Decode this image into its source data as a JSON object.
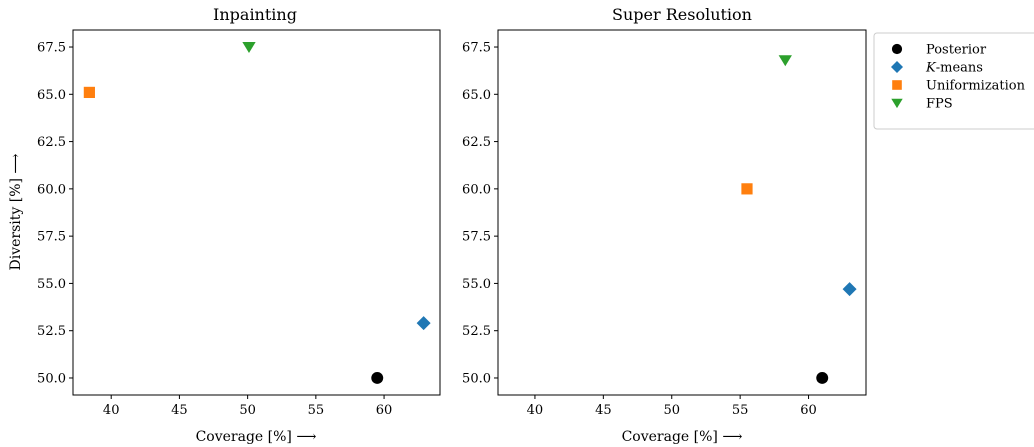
{
  "chart_data": [
    {
      "type": "scatter",
      "title": "Inpainting",
      "xlabel": "Coverage [%] ⟶",
      "ylabel": "Diversity [%] ⟶",
      "xlim": [
        37.2,
        64.1
      ],
      "ylim": [
        49.1,
        68.4
      ],
      "xticks": [
        40,
        45,
        50,
        55,
        60
      ],
      "yticks": [
        50.0,
        52.5,
        55.0,
        57.5,
        60.0,
        62.5,
        65.0,
        67.5
      ],
      "grid": false,
      "series": [
        {
          "name": "Posterior",
          "marker": "circle",
          "color": "#000000",
          "x": [
            59.5
          ],
          "y": [
            50.0
          ]
        },
        {
          "name": "K-means",
          "marker": "diamond",
          "color": "#1f77b4",
          "x": [
            62.9
          ],
          "y": [
            52.9
          ]
        },
        {
          "name": "Uniformization",
          "marker": "square",
          "color": "#ff7f0e",
          "x": [
            38.4
          ],
          "y": [
            65.1
          ]
        },
        {
          "name": "FPS",
          "marker": "triangle-down",
          "color": "#2ca02c",
          "x": [
            50.1
          ],
          "y": [
            67.5
          ]
        }
      ]
    },
    {
      "type": "scatter",
      "title": "Super Resolution",
      "xlabel": "Coverage [%] ⟶",
      "ylabel": "",
      "xlim": [
        37.3,
        64.2
      ],
      "ylim": [
        49.1,
        68.4
      ],
      "xticks": [
        40,
        45,
        50,
        55,
        60
      ],
      "yticks": [
        50.0,
        52.5,
        55.0,
        57.5,
        60.0,
        62.5,
        65.0,
        67.5
      ],
      "grid": false,
      "legend": "outside-right",
      "series": [
        {
          "name": "Posterior",
          "marker": "circle",
          "color": "#000000",
          "x": [
            61.0
          ],
          "y": [
            50.0
          ]
        },
        {
          "name": "K-means",
          "marker": "diamond",
          "color": "#1f77b4",
          "x": [
            63.0
          ],
          "y": [
            54.7
          ]
        },
        {
          "name": "Uniformization",
          "marker": "square",
          "color": "#ff7f0e",
          "x": [
            55.5
          ],
          "y": [
            60.0
          ]
        },
        {
          "name": "FPS",
          "marker": "triangle-down",
          "color": "#2ca02c",
          "x": [
            58.3
          ],
          "y": [
            66.8
          ]
        }
      ]
    }
  ],
  "legend": {
    "entries": [
      {
        "label": "Posterior",
        "marker": "circle",
        "color": "#000000"
      },
      {
        "label": "K-means",
        "marker": "diamond",
        "color": "#1f77b4"
      },
      {
        "label": "Uniformization",
        "marker": "square",
        "color": "#ff7f0e"
      },
      {
        "label": "FPS",
        "marker": "triangle-down",
        "color": "#2ca02c"
      }
    ]
  }
}
